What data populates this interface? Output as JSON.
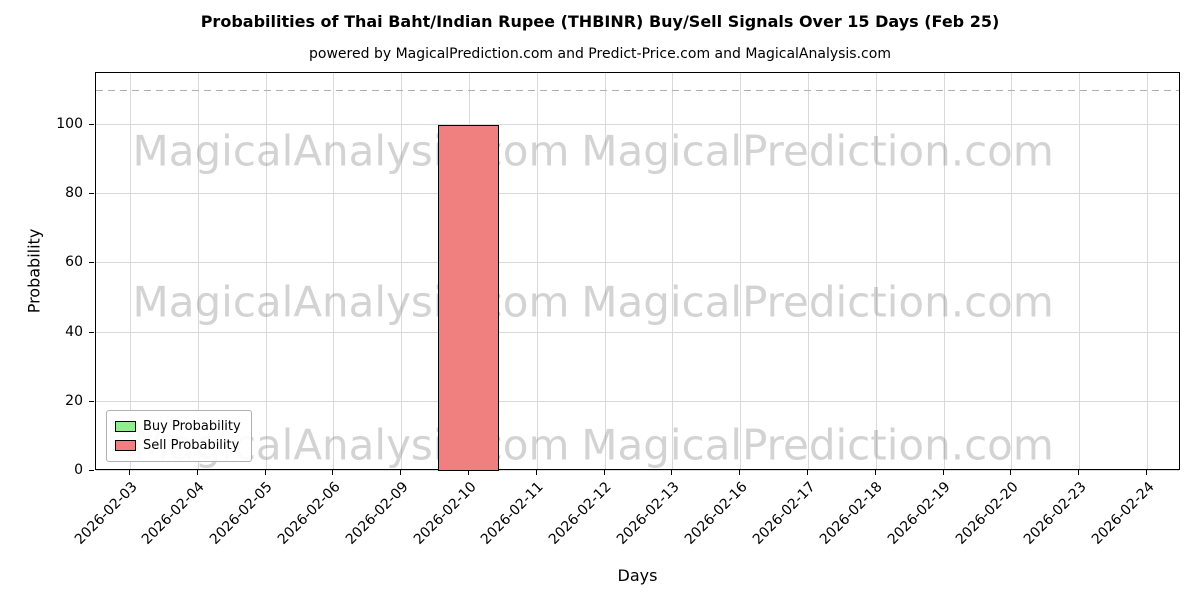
{
  "figure": {
    "title": "Probabilities of Thai Baht/Indian Rupee (THBINR) Buy/Sell Signals Over 15 Days (Feb 25)",
    "subtitle": "powered by MagicalPrediction.com and Predict-Price.com and MagicalAnalysis.com"
  },
  "watermarks": {
    "left_text": "MagicalAnalysis.com",
    "right_text": "MagicalPrediction.com"
  },
  "chart_data": {
    "type": "bar",
    "title": "Probabilities of Thai Baht/Indian Rupee (THBINR) Buy/Sell Signals Over 15 Days (Feb 25)",
    "subtitle": "powered by MagicalPrediction.com and Predict-Price.com and MagicalAnalysis.com",
    "xlabel": "Days",
    "ylabel": "Probability",
    "categories": [
      "2026-02-03",
      "2026-02-04",
      "2026-02-05",
      "2026-02-06",
      "2026-02-09",
      "2026-02-10",
      "2026-02-11",
      "2026-02-12",
      "2026-02-13",
      "2026-02-16",
      "2026-02-17",
      "2026-02-18",
      "2026-02-19",
      "2026-02-20",
      "2026-02-23",
      "2026-02-24"
    ],
    "series": [
      {
        "name": "Buy Probability",
        "color": "#90ee90",
        "values": [
          0,
          0,
          0,
          0,
          0,
          0,
          0,
          0,
          0,
          0,
          0,
          0,
          0,
          0,
          0,
          0
        ]
      },
      {
        "name": "Sell Probability",
        "color": "#f08080",
        "values": [
          0,
          0,
          0,
          0,
          0,
          100,
          0,
          0,
          0,
          0,
          0,
          0,
          0,
          0,
          0,
          0
        ]
      }
    ],
    "ylim": [
      0,
      115
    ],
    "yticks": [
      0,
      20,
      40,
      60,
      80,
      100
    ],
    "reference_line": {
      "y": 110,
      "style": "dashed",
      "color": "#b0b0b0"
    },
    "grid": true,
    "legend_position": "lower left",
    "bar_edge_color": "#000000"
  }
}
